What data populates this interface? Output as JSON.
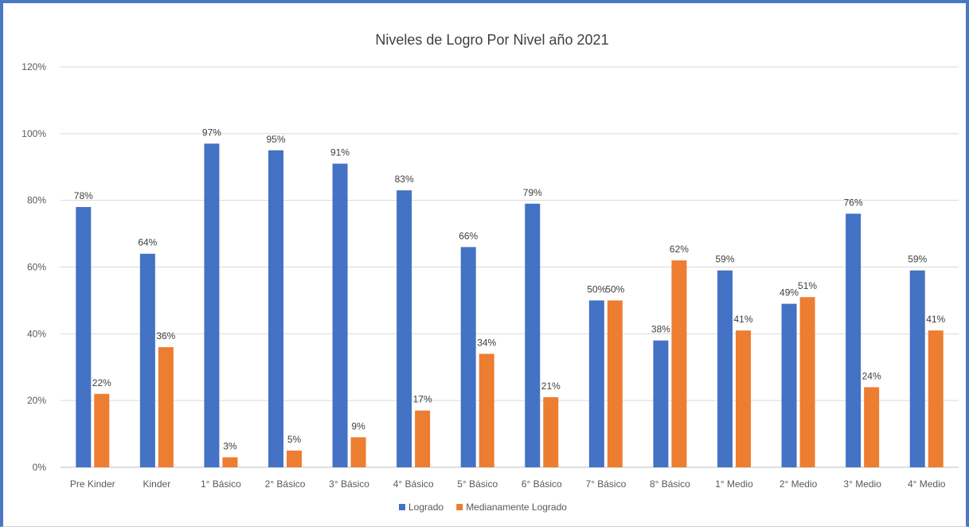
{
  "chart_data": {
    "type": "bar",
    "title": "Niveles  de Logro Por Nivel año 2021",
    "categories": [
      "Pre Kinder",
      "Kinder",
      "1° Básico",
      "2° Básico",
      "3° Básico",
      "4° Básico",
      "5° Básico",
      "6° Básico",
      "7° Básico",
      "8° Básico",
      "1° Medio",
      "2° Medio",
      "3° Medio",
      "4° Medio"
    ],
    "series": [
      {
        "name": "Logrado",
        "color": "#4472c4",
        "values": [
          78,
          64,
          97,
          95,
          91,
          83,
          66,
          79,
          50,
          38,
          59,
          49,
          76,
          59
        ],
        "labels": [
          "78%",
          "64%",
          "97%",
          "95%",
          "91%",
          "83%",
          "66%",
          "79%",
          "50%",
          "38%",
          "59%",
          "49%",
          "76%",
          "59%"
        ]
      },
      {
        "name": "Medianamente Logrado",
        "color": "#ed7d31",
        "values": [
          22,
          36,
          3,
          5,
          9,
          17,
          34,
          21,
          50,
          62,
          41,
          51,
          24,
          41
        ],
        "labels": [
          "22%",
          "36%",
          "3%",
          "5%",
          "9%",
          "17%",
          "34%",
          "21%",
          "50%",
          "62%",
          "41%",
          "51%",
          "24%",
          "41%"
        ]
      }
    ],
    "ylim": [
      0,
      120
    ],
    "yticks": [
      0,
      20,
      40,
      60,
      80,
      100,
      120
    ],
    "ytick_labels": [
      "0%",
      "20%",
      "40%",
      "60%",
      "80%",
      "100%",
      "120%"
    ],
    "grid": true,
    "legend_position": "bottom",
    "xlabel": "",
    "ylabel": ""
  }
}
